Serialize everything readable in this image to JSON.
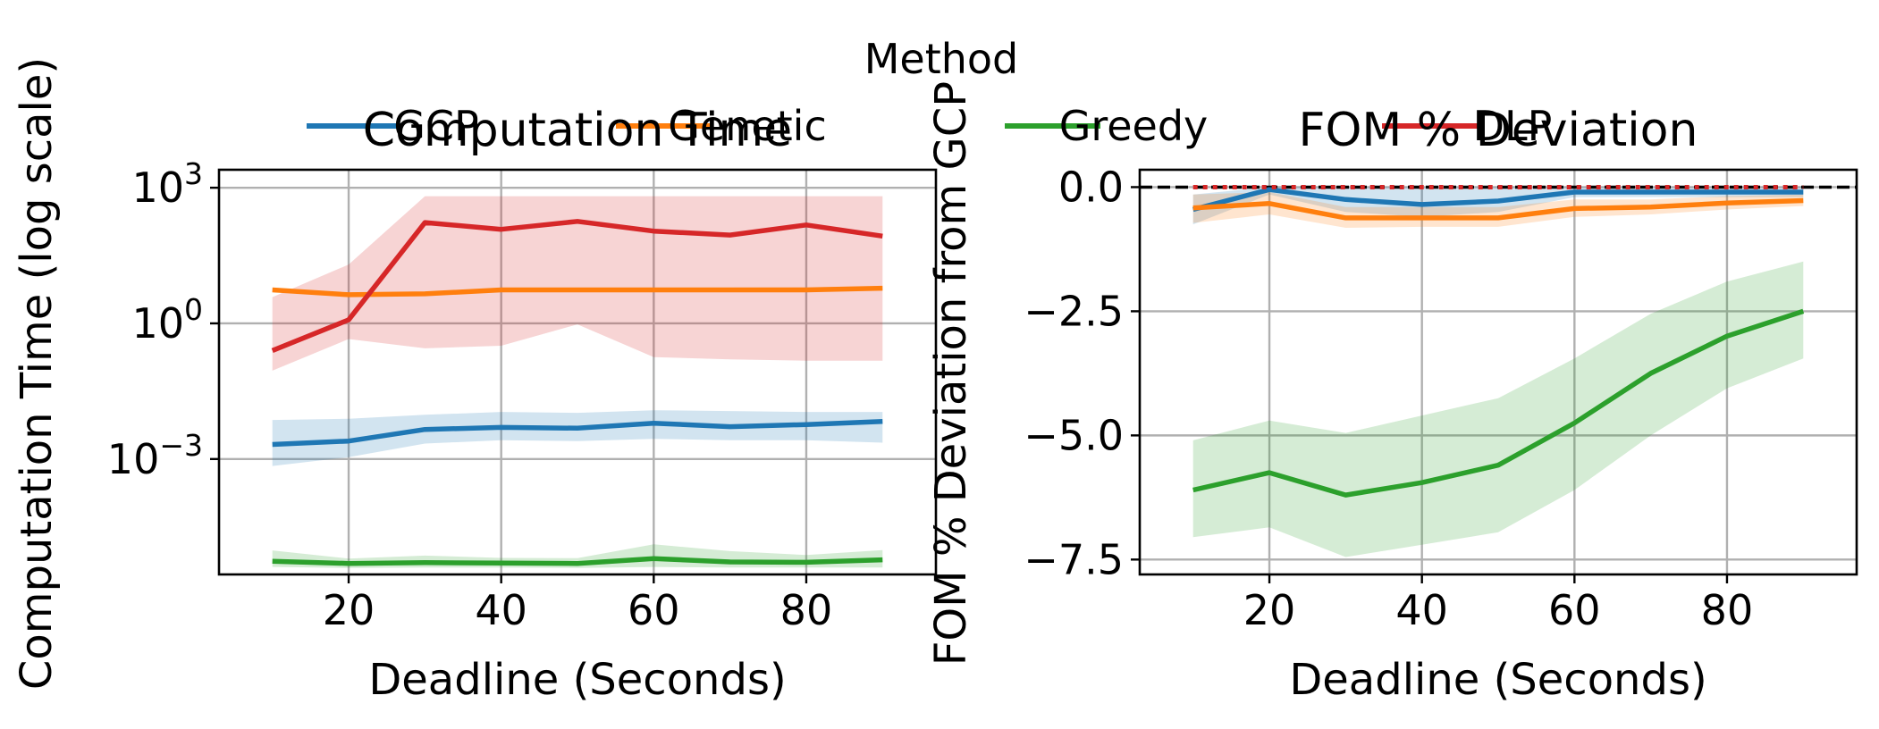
{
  "legend": {
    "title": "Method",
    "entries": [
      {
        "label": "GCP",
        "color": "#1f77b4"
      },
      {
        "label": "Genetic",
        "color": "#ff7f0e"
      },
      {
        "label": "Greedy",
        "color": "#2ca02c"
      },
      {
        "label": "DLP",
        "color": "#d62728"
      }
    ],
    "placement": "top-center"
  },
  "chart_data": [
    {
      "type": "line",
      "title": "Computation Time",
      "xlabel": "Deadline (Seconds)",
      "ylabel": "Computation Time (log scale)",
      "yscale": "log",
      "xlim": [
        3,
        97
      ],
      "ylim": [
        2.8e-06,
        2500
      ],
      "xticks": [
        20,
        40,
        60,
        80
      ],
      "yticks": [
        {
          "value": 0.001,
          "base": "10",
          "exp": "−3"
        },
        {
          "value": 1,
          "base": "10",
          "exp": "0"
        },
        {
          "value": 1000,
          "base": "10",
          "exp": "3"
        }
      ],
      "grid": true,
      "x": [
        10,
        20,
        30,
        40,
        50,
        60,
        70,
        80,
        90
      ],
      "series": [
        {
          "name": "GCP",
          "color": "#1f77b4",
          "values": [
            0.0021,
            0.0025,
            0.0045,
            0.005,
            0.0048,
            0.0062,
            0.0052,
            0.0058,
            0.0068
          ],
          "lower": [
            0.0007,
            0.0011,
            0.0022,
            0.0026,
            0.0025,
            0.0028,
            0.0026,
            0.0026,
            0.0023
          ],
          "upper": [
            0.0073,
            0.0078,
            0.0095,
            0.011,
            0.0105,
            0.012,
            0.0115,
            0.011,
            0.011
          ]
        },
        {
          "name": "Genetic",
          "color": "#ff7f0e",
          "values": [
            5.5,
            4.3,
            4.5,
            5.5,
            5.5,
            5.5,
            5.5,
            5.5,
            6.0
          ],
          "lower": [
            5.0,
            4.0,
            4.1,
            5.0,
            5.0,
            5.0,
            5.0,
            5.0,
            5.4
          ],
          "upper": [
            6.2,
            4.8,
            5.0,
            6.1,
            6.1,
            6.2,
            6.2,
            6.3,
            6.6
          ]
        },
        {
          "name": "Greedy",
          "color": "#2ca02c",
          "values": [
            5.5e-06,
            4.9e-06,
            5.1e-06,
            5e-06,
            4.9e-06,
            6.3e-06,
            5.3e-06,
            5.2e-06,
            5.9e-06
          ],
          "lower": [
            4.1e-06,
            3.9e-06,
            4e-06,
            4e-06,
            3.9e-06,
            4.1e-06,
            4e-06,
            4e-06,
            4e-06
          ],
          "upper": [
            9.5e-06,
            6.3e-06,
            7.3e-06,
            6.5e-06,
            6.4e-06,
            1.3e-05,
            9.2e-06,
            7.5e-06,
            9.7e-06
          ]
        },
        {
          "name": "DLP",
          "color": "#d62728",
          "values": [
            0.25,
            1.2,
            170,
            120,
            180,
            110,
            90,
            150,
            85
          ],
          "lower": [
            0.09,
            0.45,
            0.28,
            0.32,
            0.95,
            0.18,
            0.16,
            0.15,
            0.15
          ],
          "upper": [
            3.8,
            20,
            650,
            650,
            650,
            650,
            650,
            650,
            650
          ]
        }
      ]
    },
    {
      "type": "line",
      "title": "FOM % Deviation",
      "xlabel": "Deadline (Seconds)",
      "ylabel": "FOM % Deviation from GCP",
      "xlim": [
        3,
        97
      ],
      "ylim": [
        -7.8,
        0.35
      ],
      "xticks": [
        20,
        40,
        60,
        80
      ],
      "yticks": [
        0.0,
        -2.5,
        -5.0,
        -7.5
      ],
      "yticklabels": [
        "0.0",
        "−2.5",
        "−5.0",
        "−7.5"
      ],
      "grid": true,
      "reference_line": {
        "y": 0,
        "color": "#000000",
        "style": "dashed"
      },
      "x": [
        10,
        20,
        30,
        40,
        50,
        60,
        70,
        80,
        90
      ],
      "series": [
        {
          "name": "GCP",
          "color": "#1f77b4",
          "values": [
            -0.45,
            -0.05,
            -0.25,
            -0.35,
            -0.28,
            -0.1,
            -0.1,
            -0.1,
            -0.1
          ],
          "lower": [
            -0.75,
            -0.15,
            -0.5,
            -0.6,
            -0.5,
            -0.2,
            -0.2,
            -0.2,
            -0.2
          ],
          "upper": [
            -0.15,
            0.0,
            0.0,
            0.0,
            0.0,
            0.0,
            0.0,
            0.0,
            0.0
          ]
        },
        {
          "name": "Genetic",
          "color": "#ff7f0e",
          "values": [
            -0.42,
            -0.33,
            -0.62,
            -0.62,
            -0.62,
            -0.43,
            -0.4,
            -0.32,
            -0.27
          ],
          "lower": [
            -0.72,
            -0.55,
            -0.82,
            -0.8,
            -0.8,
            -0.6,
            -0.55,
            -0.45,
            -0.38
          ],
          "upper": [
            -0.15,
            -0.1,
            -0.4,
            -0.4,
            -0.4,
            -0.25,
            -0.25,
            -0.18,
            -0.15
          ]
        },
        {
          "name": "Greedy",
          "color": "#2ca02c",
          "values": [
            -6.1,
            -5.75,
            -6.2,
            -5.95,
            -5.6,
            -4.75,
            -3.75,
            -3.0,
            -2.5
          ],
          "lower": [
            -7.05,
            -6.85,
            -7.45,
            -7.2,
            -6.95,
            -6.1,
            -5.0,
            -4.05,
            -3.45
          ],
          "upper": [
            -5.1,
            -4.7,
            -4.95,
            -4.6,
            -4.25,
            -3.45,
            -2.55,
            -1.9,
            -1.5
          ]
        },
        {
          "name": "DLP",
          "color": "#d62728",
          "style": "dotted",
          "values": [
            0,
            0,
            0,
            0,
            0,
            0,
            0,
            0,
            0
          ]
        }
      ]
    }
  ]
}
